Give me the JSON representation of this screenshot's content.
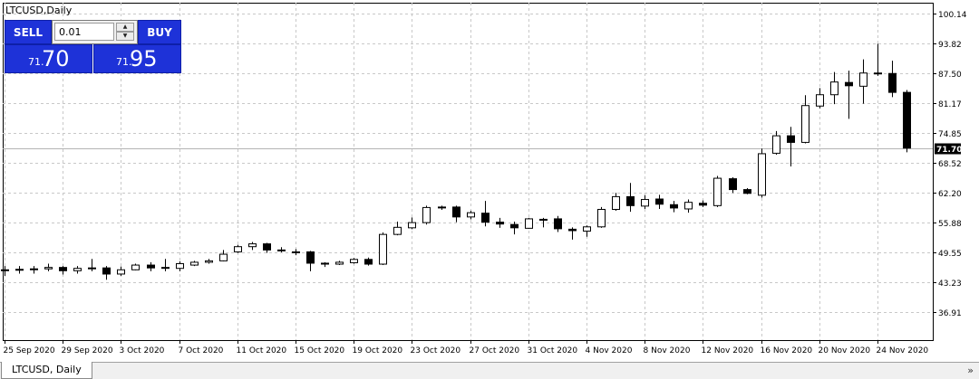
{
  "window": {
    "title": "LTCUSD,Daily"
  },
  "trade_panel": {
    "sell_label": "SELL",
    "buy_label": "BUY",
    "lot_value": "0.01",
    "sell_price_small": "71.",
    "sell_price_big": "70",
    "buy_price_small": "71.",
    "buy_price_big": "95"
  },
  "tabs": [
    {
      "label": "LTCUSD, Daily"
    }
  ],
  "scroll_icon": "double-chevron-right-icon",
  "colors": {
    "background": "#ffffff",
    "grid": "#c8c8c8",
    "candle": "#000000",
    "trade_panel": "#1e32d8",
    "current_price_label": "#000000"
  },
  "chart_data": {
    "type": "candlestick",
    "title": "LTCUSD,Daily",
    "grid": true,
    "ylim": [
      31.0,
      102.5
    ],
    "y_ticks": [
      "100.14",
      "93.82",
      "87.50",
      "81.17",
      "74.85",
      "68.52",
      "62.20",
      "55.88",
      "49.55",
      "43.23",
      "36.91"
    ],
    "x_tick_labels": [
      "25 Sep 2020",
      "29 Sep 2020",
      "3 Oct 2020",
      "7 Oct 2020",
      "11 Oct 2020",
      "15 Oct 2020",
      "19 Oct 2020",
      "23 Oct 2020",
      "27 Oct 2020",
      "31 Oct 2020",
      "4 Nov 2020",
      "8 Nov 2020",
      "12 Nov 2020",
      "16 Nov 2020",
      "20 Nov 2020",
      "24 Nov 2020"
    ],
    "current_price": 71.7,
    "current_price_label": "71.70",
    "ohlc": [
      {
        "date": "25 Sep 2020",
        "o": 45.9,
        "h": 46.7,
        "l": 44.6,
        "c": 45.9
      },
      {
        "date": "26 Sep 2020",
        "o": 45.9,
        "h": 46.7,
        "l": 45.1,
        "c": 46.0
      },
      {
        "date": "27 Sep 2020",
        "o": 46.0,
        "h": 46.7,
        "l": 45.1,
        "c": 46.1
      },
      {
        "date": "28 Sep 2020",
        "o": 46.1,
        "h": 47.2,
        "l": 45.6,
        "c": 46.4
      },
      {
        "date": "29 Sep 2020",
        "o": 46.4,
        "h": 46.7,
        "l": 44.9,
        "c": 45.7
      },
      {
        "date": "30 Sep 2020",
        "o": 45.7,
        "h": 46.7,
        "l": 45.1,
        "c": 46.2
      },
      {
        "date": "1 Oct 2020",
        "o": 46.2,
        "h": 48.2,
        "l": 45.6,
        "c": 46.3
      },
      {
        "date": "2 Oct 2020",
        "o": 46.3,
        "h": 46.7,
        "l": 43.8,
        "c": 45.0
      },
      {
        "date": "3 Oct 2020",
        "o": 45.0,
        "h": 46.6,
        "l": 44.6,
        "c": 45.9
      },
      {
        "date": "4 Oct 2020",
        "o": 45.9,
        "h": 47.2,
        "l": 45.8,
        "c": 46.9
      },
      {
        "date": "5 Oct 2020",
        "o": 46.9,
        "h": 47.5,
        "l": 45.6,
        "c": 46.3
      },
      {
        "date": "6 Oct 2020",
        "o": 46.3,
        "h": 48.2,
        "l": 45.6,
        "c": 46.4
      },
      {
        "date": "7 Oct 2020",
        "o": 46.2,
        "h": 47.7,
        "l": 45.6,
        "c": 47.2
      },
      {
        "date": "8 Oct 2020",
        "o": 46.9,
        "h": 47.8,
        "l": 46.7,
        "c": 47.5
      },
      {
        "date": "9 Oct 2020",
        "o": 47.5,
        "h": 48.2,
        "l": 47.2,
        "c": 47.8
      },
      {
        "date": "10 Oct 2020",
        "o": 47.8,
        "h": 50.1,
        "l": 47.7,
        "c": 49.2
      },
      {
        "date": "11 Oct 2020",
        "o": 49.7,
        "h": 51.2,
        "l": 49.5,
        "c": 50.8
      },
      {
        "date": "12 Oct 2020",
        "o": 50.8,
        "h": 51.8,
        "l": 50.1,
        "c": 51.4
      },
      {
        "date": "13 Oct 2020",
        "o": 51.4,
        "h": 51.6,
        "l": 49.5,
        "c": 50.1
      },
      {
        "date": "14 Oct 2020",
        "o": 50.1,
        "h": 50.7,
        "l": 49.6,
        "c": 50.0
      },
      {
        "date": "15 Oct 2020",
        "o": 49.7,
        "h": 50.3,
        "l": 49.0,
        "c": 49.7
      },
      {
        "date": "16 Oct 2020",
        "o": 49.7,
        "h": 49.9,
        "l": 45.6,
        "c": 47.3
      },
      {
        "date": "17 Oct 2020",
        "o": 47.3,
        "h": 47.5,
        "l": 46.5,
        "c": 47.1
      },
      {
        "date": "18 Oct 2020",
        "o": 47.1,
        "h": 47.8,
        "l": 46.9,
        "c": 47.5
      },
      {
        "date": "19 Oct 2020",
        "o": 47.4,
        "h": 48.4,
        "l": 47.2,
        "c": 48.1
      },
      {
        "date": "20 Oct 2020",
        "o": 48.1,
        "h": 48.5,
        "l": 46.8,
        "c": 47.1
      },
      {
        "date": "21 Oct 2020",
        "o": 47.1,
        "h": 53.8,
        "l": 46.9,
        "c": 53.4
      },
      {
        "date": "22 Oct 2020",
        "o": 53.4,
        "h": 56.1,
        "l": 53.2,
        "c": 54.9
      },
      {
        "date": "23 Oct 2020",
        "o": 54.8,
        "h": 57.0,
        "l": 54.5,
        "c": 55.9
      },
      {
        "date": "24 Oct 2020",
        "o": 55.9,
        "h": 59.5,
        "l": 55.5,
        "c": 59.1
      },
      {
        "date": "25 Oct 2020",
        "o": 59.1,
        "h": 59.5,
        "l": 58.6,
        "c": 59.2
      },
      {
        "date": "26 Oct 2020",
        "o": 59.2,
        "h": 59.5,
        "l": 56.0,
        "c": 57.1
      },
      {
        "date": "27 Oct 2020",
        "o": 57.1,
        "h": 58.4,
        "l": 56.6,
        "c": 58.0
      },
      {
        "date": "28 Oct 2020",
        "o": 57.9,
        "h": 60.5,
        "l": 55.1,
        "c": 56.0
      },
      {
        "date": "29 Oct 2020",
        "o": 56.0,
        "h": 56.9,
        "l": 54.8,
        "c": 55.6
      },
      {
        "date": "30 Oct 2020",
        "o": 55.5,
        "h": 56.1,
        "l": 53.4,
        "c": 54.8
      },
      {
        "date": "31 Oct 2020",
        "o": 54.7,
        "h": 56.9,
        "l": 54.6,
        "c": 56.7
      },
      {
        "date": "1 Nov 2020",
        "o": 56.6,
        "h": 56.9,
        "l": 54.9,
        "c": 56.5
      },
      {
        "date": "2 Nov 2020",
        "o": 56.7,
        "h": 57.3,
        "l": 53.9,
        "c": 54.6
      },
      {
        "date": "3 Nov 2020",
        "o": 54.5,
        "h": 54.9,
        "l": 52.3,
        "c": 54.2
      },
      {
        "date": "4 Nov 2020",
        "o": 54.1,
        "h": 55.3,
        "l": 52.9,
        "c": 55.0
      },
      {
        "date": "5 Nov 2020",
        "o": 55.0,
        "h": 59.2,
        "l": 54.8,
        "c": 58.7
      },
      {
        "date": "6 Nov 2020",
        "o": 58.7,
        "h": 62.2,
        "l": 58.4,
        "c": 61.4
      },
      {
        "date": "7 Nov 2020",
        "o": 61.4,
        "h": 64.3,
        "l": 58.2,
        "c": 59.5
      },
      {
        "date": "8 Nov 2020",
        "o": 59.4,
        "h": 61.7,
        "l": 58.8,
        "c": 60.8
      },
      {
        "date": "9 Nov 2020",
        "o": 60.9,
        "h": 61.8,
        "l": 58.8,
        "c": 59.8
      },
      {
        "date": "10 Nov 2020",
        "o": 59.7,
        "h": 60.5,
        "l": 58.1,
        "c": 59.0
      },
      {
        "date": "11 Nov 2020",
        "o": 58.8,
        "h": 60.8,
        "l": 58.0,
        "c": 60.2
      },
      {
        "date": "12 Nov 2020",
        "o": 60.0,
        "h": 60.6,
        "l": 59.2,
        "c": 59.6
      },
      {
        "date": "13 Nov 2020",
        "o": 59.5,
        "h": 65.8,
        "l": 59.2,
        "c": 65.3
      },
      {
        "date": "14 Nov 2020",
        "o": 65.2,
        "h": 65.5,
        "l": 62.2,
        "c": 62.9
      },
      {
        "date": "15 Nov 2020",
        "o": 62.9,
        "h": 63.2,
        "l": 61.9,
        "c": 62.1
      },
      {
        "date": "16 Nov 2020",
        "o": 61.7,
        "h": 71.6,
        "l": 61.2,
        "c": 70.5
      },
      {
        "date": "17 Nov 2020",
        "o": 70.6,
        "h": 75.3,
        "l": 70.3,
        "c": 74.3
      },
      {
        "date": "18 Nov 2020",
        "o": 74.3,
        "h": 76.2,
        "l": 67.8,
        "c": 72.9
      },
      {
        "date": "19 Nov 2020",
        "o": 72.9,
        "h": 82.9,
        "l": 72.7,
        "c": 80.7
      },
      {
        "date": "20 Nov 2020",
        "o": 80.6,
        "h": 84.4,
        "l": 80.1,
        "c": 83.0
      },
      {
        "date": "21 Nov 2020",
        "o": 83.0,
        "h": 87.8,
        "l": 81.0,
        "c": 85.7
      },
      {
        "date": "22 Nov 2020",
        "o": 85.6,
        "h": 88.1,
        "l": 77.9,
        "c": 84.9
      },
      {
        "date": "23 Nov 2020",
        "o": 84.8,
        "h": 90.5,
        "l": 81.1,
        "c": 87.6
      },
      {
        "date": "24 Nov 2020",
        "o": 87.5,
        "h": 93.8,
        "l": 87.0,
        "c": 87.6
      },
      {
        "date": "25 Nov 2020",
        "o": 87.5,
        "h": 90.2,
        "l": 82.5,
        "c": 83.5
      },
      {
        "date": "26 Nov 2020",
        "o": 83.5,
        "h": 84.0,
        "l": 70.8,
        "c": 71.7
      }
    ]
  }
}
